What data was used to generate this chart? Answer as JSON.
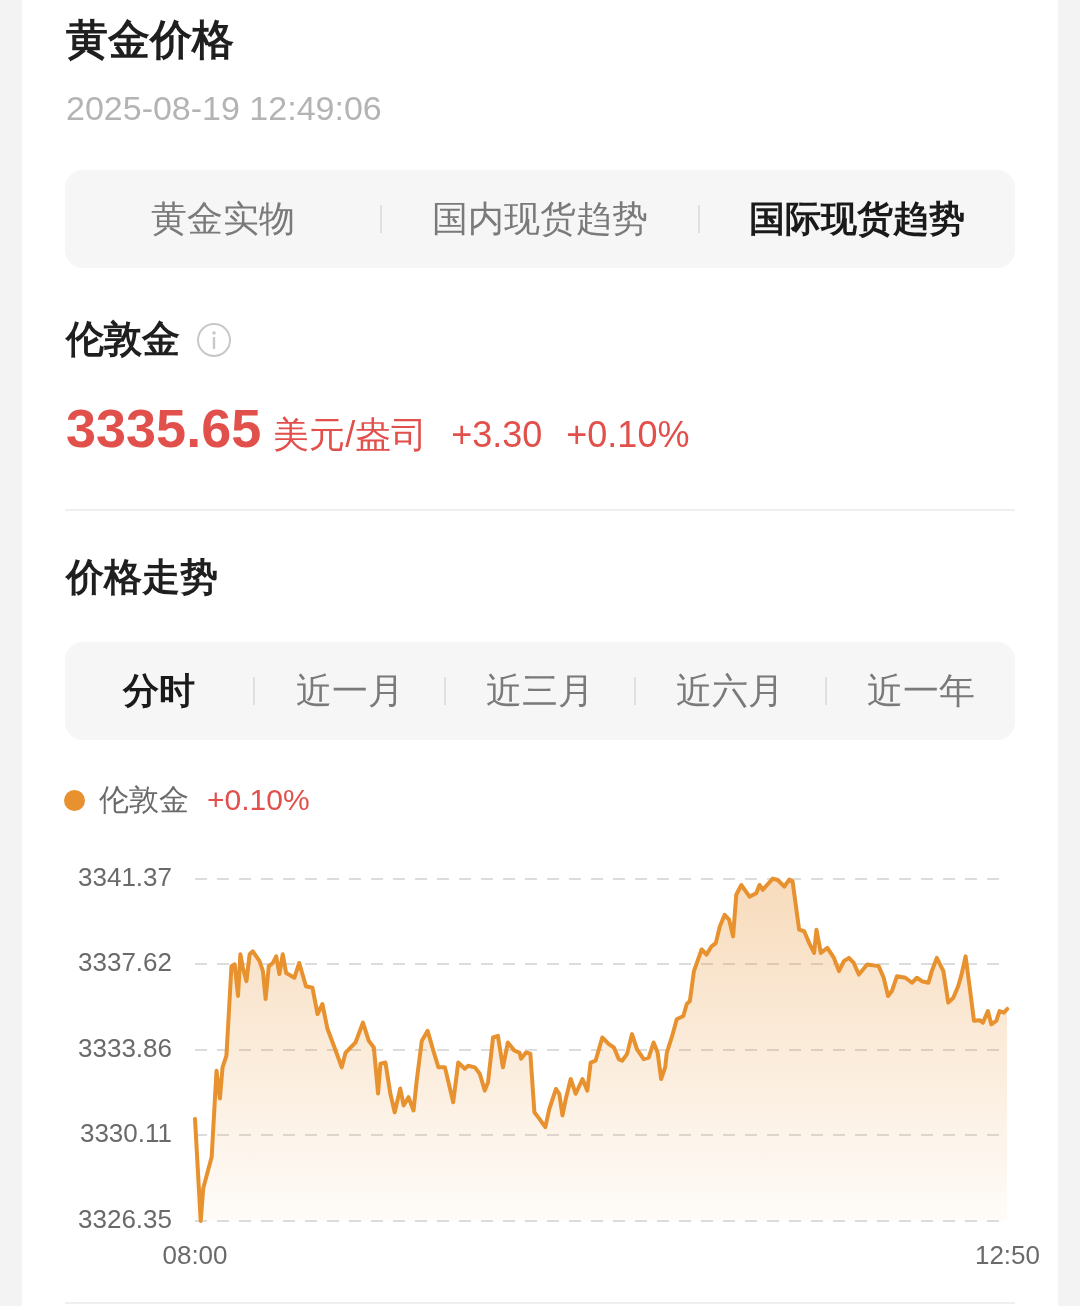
{
  "chart_data": {
    "type": "area",
    "title": "黄金价格",
    "subtitle": "2025-08-19 12:49:06",
    "x": [
      8.0,
      8.034,
      8.049,
      8.099,
      8.128,
      8.148,
      8.164,
      8.187,
      8.217,
      8.236,
      8.256,
      8.27,
      8.285,
      8.306,
      8.325,
      8.344,
      8.384,
      8.404,
      8.42,
      8.439,
      8.463,
      8.483,
      8.502,
      8.522,
      8.542,
      8.591,
      8.62,
      8.66,
      8.699,
      8.729,
      8.758,
      8.788,
      8.837,
      8.873,
      8.896,
      8.955,
      8.999,
      9.034,
      9.064,
      9.089,
      9.103,
      9.133,
      9.162,
      9.188,
      9.221,
      9.241,
      9.27,
      9.3,
      9.319,
      9.349,
      9.384,
      9.418,
      9.448,
      9.487,
      9.536,
      9.566,
      9.605,
      9.625,
      9.665,
      9.694,
      9.724,
      9.743,
      9.773,
      9.802,
      9.832,
      9.861,
      9.901,
      9.93,
      9.94,
      9.969,
      9.995,
      10.019,
      10.049,
      10.084,
      10.108,
      10.147,
      10.167,
      10.186,
      10.206,
      10.235,
      10.265,
      10.305,
      10.334,
      10.354,
      10.383,
      10.423,
      10.462,
      10.492,
      10.521,
      10.541,
      10.57,
      10.6,
      10.629,
      10.669,
      10.699,
      10.728,
      10.752,
      10.773,
      10.797,
      10.807,
      10.836,
      10.866,
      10.905,
      10.925,
      10.944,
      10.968,
      11.014,
      11.043,
      11.073,
      11.098,
      11.122,
      11.151,
      11.177,
      11.201,
      11.22,
      11.25,
      11.299,
      11.339,
      11.358,
      11.378,
      11.437,
      11.467,
      11.506,
      11.535,
      11.555,
      11.594,
      11.624,
      11.654,
      11.683,
      11.697,
      11.723,
      11.762,
      11.801,
      11.831,
      11.86,
      11.89,
      11.919,
      11.949,
      11.999,
      12.067,
      12.097,
      12.123,
      12.146,
      12.176,
      12.226,
      12.265,
      12.294,
      12.324,
      12.363,
      12.383,
      12.413,
      12.452,
      12.481,
      12.511,
      12.54,
      12.56,
      12.584,
      12.609,
      12.634,
      12.668,
      12.687,
      12.717,
      12.737,
      12.767,
      12.786,
      12.812,
      12.832
    ],
    "series": [
      {
        "name": "伦敦金",
        "color": "#e8912f",
        "values": [
          3330.83,
          3326.35,
          3327.79,
          3329.16,
          3332.94,
          3331.72,
          3333.09,
          3333.6,
          3337.53,
          3337.61,
          3336.22,
          3338.05,
          3337.45,
          3336.87,
          3338.05,
          3338.18,
          3337.75,
          3337.31,
          3336.09,
          3337.53,
          3337.67,
          3337.96,
          3337.18,
          3338.05,
          3337.23,
          3337.02,
          3337.67,
          3336.65,
          3336.58,
          3335.43,
          3335.87,
          3334.78,
          3333.82,
          3333.09,
          3333.74,
          3334.18,
          3335.05,
          3334.25,
          3333.96,
          3331.94,
          3333.25,
          3333.3,
          3331.94,
          3331.12,
          3332.16,
          3331.42,
          3331.78,
          3331.2,
          3332.51,
          3334.25,
          3334.69,
          3333.82,
          3333.09,
          3333.09,
          3331.56,
          3333.3,
          3333.03,
          3333.16,
          3333.09,
          3332.81,
          3332.07,
          3332.43,
          3334.4,
          3334.47,
          3333.09,
          3334.18,
          3333.82,
          3333.74,
          3333.47,
          3333.74,
          3333.69,
          3331.12,
          3330.83,
          3330.47,
          3331.27,
          3332.14,
          3331.93,
          3330.98,
          3331.71,
          3332.58,
          3331.93,
          3332.58,
          3332.07,
          3333.3,
          3333.38,
          3334.4,
          3334.11,
          3333.96,
          3333.45,
          3333.38,
          3333.67,
          3334.55,
          3333.89,
          3333.45,
          3333.52,
          3334.18,
          3333.74,
          3332.58,
          3333.09,
          3333.74,
          3334.4,
          3335.2,
          3335.34,
          3335.86,
          3336.0,
          3337.31,
          3338.26,
          3338.04,
          3338.4,
          3338.54,
          3339.27,
          3339.78,
          3339.57,
          3338.84,
          3340.66,
          3341.09,
          3340.58,
          3340.73,
          3341.09,
          3340.88,
          3341.37,
          3341.31,
          3341.02,
          3341.33,
          3341.24,
          3339.13,
          3339.06,
          3338.54,
          3338.11,
          3339.13,
          3338.11,
          3338.33,
          3337.89,
          3337.31,
          3337.75,
          3337.89,
          3337.67,
          3337.16,
          3337.6,
          3337.53,
          3337.02,
          3336.22,
          3336.44,
          3337.09,
          3337.02,
          3336.8,
          3337.02,
          3336.87,
          3336.8,
          3337.31,
          3337.89,
          3337.31,
          3335.93,
          3336.14,
          3336.65,
          3337.16,
          3337.96,
          3336.58,
          3335.13,
          3335.16,
          3335.05,
          3335.56,
          3334.98,
          3335.13,
          3335.56,
          3335.49,
          3335.65
        ]
      }
    ],
    "xlim": [
      8,
      12.8333
    ],
    "xticks": [
      {
        "value": 8,
        "label": "08:00"
      },
      {
        "value": 12.8333,
        "label": "12:50"
      }
    ],
    "ylim": [
      3326.35,
      3341.37
    ],
    "yticks": [
      3326.35,
      3330.11,
      3333.86,
      3337.62,
      3341.37
    ],
    "grid": "y",
    "legend": "top left",
    "annotations": [
      "黄金实物",
      "国内现货趋势",
      "国际现货趋势",
      "伦敦金",
      "3335.65",
      "美元/盎司",
      "+3.30",
      "+0.10%",
      "价格走势",
      "分时",
      "近一月",
      "近三月",
      "近六月",
      "近一年",
      "+0.10%"
    ]
  }
}
